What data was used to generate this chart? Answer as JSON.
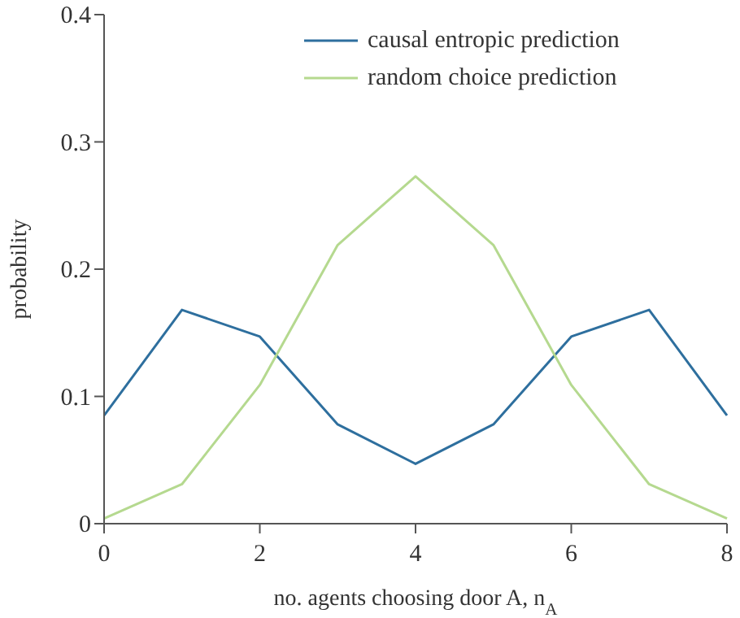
{
  "chart_data": {
    "type": "line",
    "xlabel": "no. agents choosing door A, n$_{A}$",
    "ylabel": "probability",
    "x": [
      0,
      1,
      2,
      3,
      4,
      5,
      6,
      7,
      8
    ],
    "series": [
      {
        "name": "causal entropic prediction",
        "color": "#2e6f9e",
        "values": [
          0.085,
          0.168,
          0.147,
          0.078,
          0.047,
          0.078,
          0.147,
          0.168,
          0.085
        ]
      },
      {
        "name": "random choice prediction",
        "color": "#b5d98f",
        "values": [
          0.004,
          0.031,
          0.109,
          0.219,
          0.273,
          0.219,
          0.109,
          0.031,
          0.004
        ]
      }
    ],
    "xlim": [
      0,
      8
    ],
    "xticks": [
      0,
      2,
      4,
      6,
      8
    ],
    "ylim": [
      0,
      0.4
    ],
    "yticks": [
      0,
      0.1,
      0.2,
      0.3,
      0.4
    ],
    "grid": false,
    "legend": "top right",
    "marker": "none",
    "line_style": "solid"
  }
}
